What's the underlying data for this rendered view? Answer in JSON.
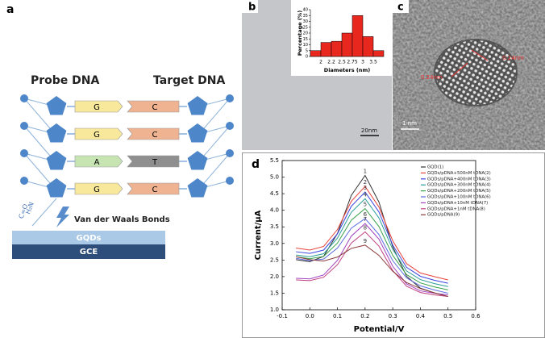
{
  "panel_a": {
    "label": "a",
    "probe": "Probe DNA",
    "target": "Target DNA",
    "pairs": [
      [
        "G",
        "C"
      ],
      [
        "G",
        "C"
      ],
      [
        "A",
        "T"
      ],
      [
        "G",
        "C"
      ]
    ],
    "linker": [
      "H₂N",
      "C=O"
    ],
    "bond": "Van der Waals Bonds",
    "layers": [
      "GQDs",
      "GCE"
    ]
  },
  "panel_b": {
    "label": "b",
    "scale_bar": "20nm"
  },
  "panel_c": {
    "label": "c",
    "scale_bar": "1 nm",
    "annotations": [
      "0.24nm",
      "0.24nm"
    ]
  },
  "panel_d": {
    "label": "d"
  },
  "chart_data": [
    {
      "type": "bar",
      "ylabel": "Percentage (%)",
      "xlabel": "Diameters (nm)",
      "categories": [
        null,
        null,
        null,
        null,
        null,
        null,
        null
      ],
      "bin_edge_labels": [
        "2",
        "2.2",
        "2.5",
        "2.75",
        "3",
        "3.5"
      ],
      "values": [
        5,
        12,
        13,
        20,
        35,
        17,
        5
      ],
      "color": "#e8271f",
      "ylim": [
        0,
        40
      ],
      "yticks": [
        0,
        5,
        10,
        15,
        20,
        25,
        30,
        35,
        40
      ]
    },
    {
      "type": "line",
      "xlabel": "Potential/V",
      "ylabel": "Current/μA",
      "x": [
        -0.05,
        0,
        0.05,
        0.1,
        0.15,
        0.2,
        0.25,
        0.3,
        0.35,
        0.4,
        0.45,
        0.5
      ],
      "xlim": [
        -0.1,
        0.6
      ],
      "xticks": [
        -0.1,
        {
          "value": 0,
          "label": "0.0"
        },
        0.1,
        0.2,
        0.3,
        0.4,
        0.5,
        0.6
      ],
      "ylim": [
        1.0,
        5.5
      ],
      "yticks": [
        {
          "value": 1,
          "label": "1.0"
        },
        1.5,
        {
          "value": 2,
          "label": "2.0"
        },
        2.5,
        {
          "value": 3,
          "label": "3.0"
        },
        3.5,
        {
          "value": 4,
          "label": "4.0"
        },
        4.5,
        {
          "value": 5,
          "label": "5.0"
        },
        5.5
      ],
      "legend": "upper right",
      "curve_labels": [
        "1",
        "2",
        "3",
        "4",
        "5",
        "6",
        "7",
        "8",
        "9"
      ],
      "series": [
        {
          "name": "GQD(1)",
          "color": "#333333",
          "values": [
            2.51,
            2.45,
            2.61,
            3.3,
            4.45,
            5.05,
            4.25,
            2.9,
            2.01,
            1.65,
            1.51,
            1.4
          ]
        },
        {
          "name": "GQDs/pDNA+500nM tDNA(2)",
          "color": "#e8413a",
          "values": [
            2.86,
            2.8,
            2.91,
            3.42,
            4.27,
            4.72,
            4.1,
            3.08,
            2.39,
            2.11,
            2.0,
            1.9
          ]
        },
        {
          "name": "GQDs/pDNA+400nM tDNA(3)",
          "color": "#3a44e0",
          "values": [
            2.75,
            2.7,
            2.8,
            3.29,
            4.12,
            4.55,
            3.95,
            2.95,
            2.28,
            2.01,
            1.89,
            1.8
          ]
        },
        {
          "name": "GQDs/pDNA+300nM tDNA(4)",
          "color": "#2a9d9a",
          "values": [
            2.65,
            2.6,
            2.69,
            3.16,
            3.94,
            4.35,
            3.77,
            2.82,
            2.17,
            1.91,
            1.79,
            1.7
          ]
        },
        {
          "name": "GQDs/pDNA+200nM tDNA(5)",
          "color": "#3aa04a",
          "values": [
            2.6,
            2.54,
            2.61,
            3.01,
            3.7,
            4.05,
            3.51,
            2.64,
            2.06,
            1.81,
            1.69,
            1.6
          ]
        },
        {
          "name": "GQDs/pDNA+100nM tDNA(6)",
          "color": "#5a6be0",
          "values": [
            2.55,
            2.48,
            2.53,
            2.86,
            3.46,
            3.75,
            3.27,
            2.48,
            1.96,
            1.72,
            1.6,
            1.5
          ]
        },
        {
          "name": "GQDs/pDNA+10nM tDNA(7)",
          "color": "#a040c0",
          "values": [
            1.95,
            1.93,
            2.05,
            2.49,
            3.22,
            3.6,
            3.13,
            2.31,
            1.78,
            1.57,
            1.5,
            1.45
          ]
        },
        {
          "name": "GQDs/pDNA+1nM tDNA(8)",
          "color": "#c04080",
          "values": [
            1.9,
            1.88,
            1.98,
            2.36,
            3.01,
            3.35,
            2.92,
            2.18,
            1.71,
            1.52,
            1.45,
            1.4
          ]
        },
        {
          "name": "GQDs/pDNA(9)",
          "color": "#8b3a3a",
          "values": [
            2.6,
            2.51,
            2.47,
            2.59,
            2.85,
            2.95,
            2.64,
            2.16,
            1.82,
            1.64,
            1.51,
            1.4
          ]
        }
      ]
    }
  ]
}
